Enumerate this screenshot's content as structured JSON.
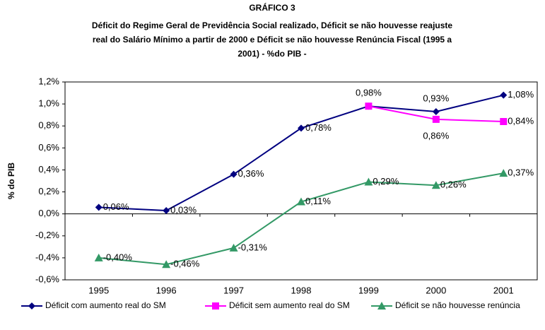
{
  "chart_data": {
    "type": "line",
    "title": "GRÁFICO 3",
    "subtitle": [
      "Déficit do Regime Geral de Previdência Social realizado, Déficit se não houvesse reajuste",
      "real do Salário Mínimo a partir de 2000 e Déficit se não houvesse Renúncia Fiscal (1995 a",
      "2001) - %do PIB -"
    ],
    "y_label": "% do PIB",
    "categories": [
      "1995",
      "1996",
      "1997",
      "1998",
      "1999",
      "2000",
      "2001"
    ],
    "series": [
      {
        "name": "Déficit com aumento real do SM",
        "color": "#000080",
        "marker": "diamond",
        "values": [
          0.06,
          0.03,
          0.36,
          0.78,
          0.98,
          0.93,
          1.08
        ],
        "value_labels": [
          "0,06%",
          "0,03%",
          "0,36%",
          "0,78%",
          "0,98%",
          "0,93%",
          "1,08%"
        ]
      },
      {
        "name": "Déficit sem aumento real do SM",
        "color": "#ff00ff",
        "marker": "square",
        "values": [
          null,
          null,
          null,
          null,
          0.98,
          0.86,
          0.84
        ],
        "value_labels": [
          null,
          null,
          null,
          null,
          null,
          "0,86%",
          "0,84%"
        ]
      },
      {
        "name": "Déficit se não houvesse renúncia",
        "color": "#339966",
        "marker": "triangle",
        "values": [
          -0.4,
          -0.46,
          -0.31,
          0.11,
          0.29,
          0.26,
          0.37
        ],
        "value_labels": [
          "-0,40%",
          "-0,46%",
          "-0,31%",
          "0,11%",
          "0,29%",
          "0,26%",
          "0,37%"
        ]
      }
    ],
    "ylim": [
      -0.6,
      1.2
    ],
    "yticks": [
      {
        "value": -0.6,
        "label": "-0,6%"
      },
      {
        "value": -0.4,
        "label": "-0,4%"
      },
      {
        "value": -0.2,
        "label": "-0,2%"
      },
      {
        "value": 0,
        "label": "0,0%"
      },
      {
        "value": 0.2,
        "label": "0,2%"
      },
      {
        "value": 0.4,
        "label": "0,4%"
      },
      {
        "value": 0.6,
        "label": "0,6%"
      },
      {
        "value": 0.8,
        "label": "0,8%"
      },
      {
        "value": 1.0,
        "label": "1,0%"
      },
      {
        "value": 1.2,
        "label": "1,2%"
      }
    ],
    "legend": "bottom"
  }
}
